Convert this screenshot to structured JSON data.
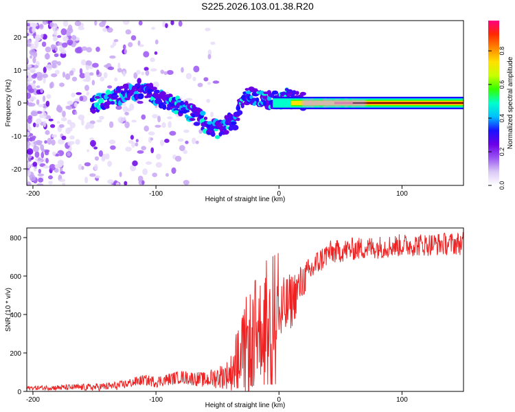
{
  "page": {
    "title": "S225.2026.103.01.38.R20"
  },
  "chart_data": [
    {
      "type": "heatmap",
      "title": "S225.2026.103.01.38.R20",
      "xlabel": "Height of straight line (km)",
      "ylabel": "Frequency (Hz)",
      "xlim": [
        -205,
        150
      ],
      "ylim": [
        -25,
        25
      ],
      "x_ticks": [
        -200,
        -100,
        0,
        100
      ],
      "x_tick_labels": [
        "-200",
        "-100",
        "0",
        "100"
      ],
      "y_ticks": [
        -20,
        -10,
        0,
        10,
        20
      ],
      "y_tick_labels": [
        "-20",
        "-10",
        "0",
        "10",
        "20"
      ],
      "colorbar": {
        "label": "Normalized spectral amplitude",
        "range": [
          0,
          0.98
        ],
        "ticks": [
          0.0,
          0.2,
          0.4,
          0.6,
          0.8
        ],
        "tick_labels": [
          "0.0",
          "0.2",
          "0.4",
          "0.6",
          "0.8"
        ],
        "colormap": [
          "#ffffff",
          "#d9c8f5",
          "#9a55f2",
          "#6a00e6",
          "#1a10ff",
          "#00bfff",
          "#00ffcc",
          "#33ff00",
          "#c8ff00",
          "#ffe000",
          "#ff8800",
          "#ff2a00",
          "#ff0080"
        ]
      },
      "ridge": {
        "x": [
          -150,
          -140,
          -130,
          -120,
          -110,
          -100,
          -90,
          -80,
          -70,
          -60,
          -50,
          -45,
          -40,
          -35,
          -30,
          -25,
          -20,
          -15,
          -10,
          -5,
          0,
          5,
          10,
          20,
          40,
          60,
          100,
          150
        ],
        "y": [
          0,
          1,
          2,
          3,
          5,
          2,
          0,
          -1,
          -3,
          -6,
          -8,
          -7,
          -6,
          -5,
          1,
          2,
          2,
          1,
          1,
          0.5,
          1,
          2,
          1,
          0.5,
          0,
          0,
          0,
          0
        ]
      }
    },
    {
      "type": "line",
      "xlabel": "Height of straight line (km)",
      "ylabel": "SNR (10 * v/v)",
      "xlim": [
        -205,
        150
      ],
      "ylim": [
        0,
        850
      ],
      "x_ticks": [
        -200,
        -100,
        0,
        100
      ],
      "x_tick_labels": [
        "-200",
        "-100",
        "0",
        "100"
      ],
      "y_ticks": [
        0,
        200,
        400,
        600,
        800
      ],
      "y_tick_labels": [
        "0",
        "200",
        "400",
        "600",
        "800"
      ],
      "series": [
        {
          "name": "SNR",
          "color": "#ee2222",
          "trend": {
            "x": [
              -205,
              -150,
              -130,
              -120,
              -110,
              -100,
              -80,
              -60,
              -40,
              -30,
              -20,
              -10,
              0,
              10,
              20,
              30,
              40,
              60,
              80,
              100,
              150
            ],
            "y": [
              18,
              22,
              30,
              45,
              60,
              50,
              75,
              60,
              90,
              200,
              300,
              360,
              380,
              470,
              580,
              660,
              720,
              740,
              750,
              760,
              770
            ]
          },
          "jitter_amplitude": {
            "x": [
              -205,
              -120,
              -60,
              -40,
              -30,
              -20,
              -10,
              0,
              10,
              20,
              30,
              50,
              150
            ],
            "y": [
              10,
              25,
              40,
              80,
              250,
              280,
              260,
              200,
              150,
              90,
              70,
              60,
              60
            ]
          },
          "points": 1000
        }
      ]
    }
  ]
}
